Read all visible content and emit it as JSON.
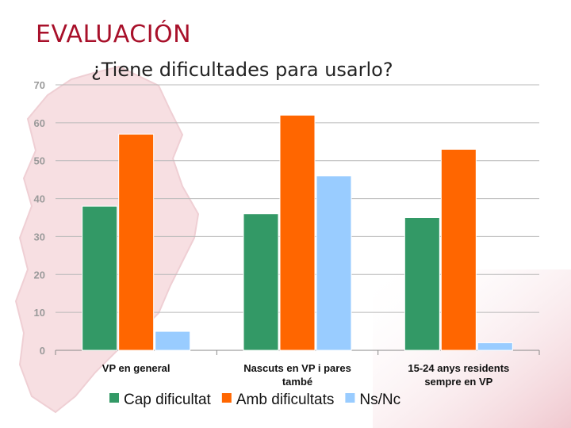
{
  "slide": {
    "title": "EVALUACIÓN"
  },
  "chart_data": {
    "type": "bar",
    "title": "¿Tiene dificultades para usarlo?",
    "xlabel": "",
    "ylabel": "",
    "ylim": [
      0,
      70
    ],
    "yticks": [
      0,
      10,
      20,
      30,
      40,
      50,
      60,
      70
    ],
    "grid": true,
    "legend_position": "bottom",
    "categories": [
      [
        "VP en general"
      ],
      [
        "Nascuts en VP i pares",
        "també"
      ],
      [
        "15-24 anys residents",
        "sempre en VP"
      ]
    ],
    "series": [
      {
        "name": "Cap dificultat",
        "color": "#339966",
        "values": [
          38,
          36,
          35
        ]
      },
      {
        "name": "Amb dificultats",
        "color": "#ff6600",
        "values": [
          57,
          62,
          53
        ]
      },
      {
        "name": "Ns/Nc",
        "color": "#99ccff",
        "values": [
          5,
          46,
          2
        ]
      }
    ]
  }
}
